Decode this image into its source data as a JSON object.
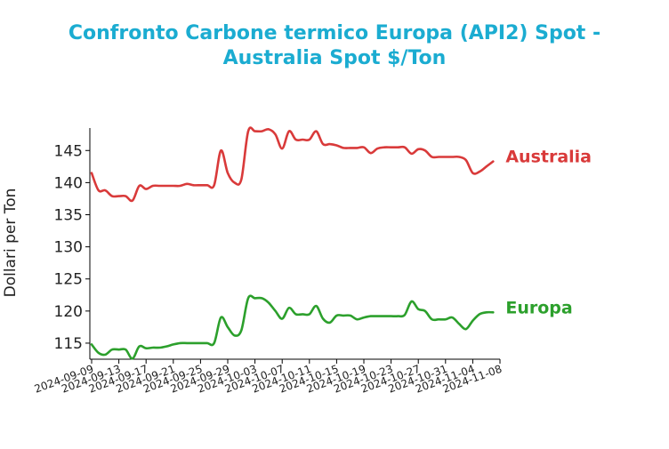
{
  "chart_data": {
    "type": "line",
    "title_line1": "Confronto Carbone termico Europa (API2) Spot -",
    "title_line2": "Australia Spot $/Ton",
    "xlabel": "",
    "ylabel": "Dollari per Ton",
    "ylim": [
      112.5,
      148.5
    ],
    "yticks": [
      115,
      120,
      125,
      130,
      135,
      140,
      145
    ],
    "xlim": [
      "2024-09-09",
      "2024-11-08"
    ],
    "xticks": [
      "2024-09-09",
      "2024-09-13",
      "2024-09-17",
      "2024-09-21",
      "2024-09-25",
      "2024-09-29",
      "2024-10-03",
      "2024-10-07",
      "2024-10-11",
      "2024-10-15",
      "2024-10-19",
      "2024-10-23",
      "2024-10-27",
      "2024-10-31",
      "2024-11-04",
      "2024-11-08"
    ],
    "grid": false,
    "legend": "inline labels at series end",
    "colors": {
      "title": "#1bacd1",
      "Australia": "#d93a3a",
      "Europa": "#2ca02c"
    },
    "series": [
      {
        "name": "Australia",
        "x": [
          "2024-09-09",
          "2024-09-10",
          "2024-09-11",
          "2024-09-12",
          "2024-09-13",
          "2024-09-14",
          "2024-09-15",
          "2024-09-16",
          "2024-09-17",
          "2024-09-18",
          "2024-09-19",
          "2024-09-20",
          "2024-09-21",
          "2024-09-22",
          "2024-09-23",
          "2024-09-24",
          "2024-09-25",
          "2024-09-26",
          "2024-09-27",
          "2024-09-28",
          "2024-09-29",
          "2024-09-30",
          "2024-10-01",
          "2024-10-02",
          "2024-10-03",
          "2024-10-04",
          "2024-10-05",
          "2024-10-06",
          "2024-10-07",
          "2024-10-08",
          "2024-10-09",
          "2024-10-10",
          "2024-10-11",
          "2024-10-12",
          "2024-10-13",
          "2024-10-14",
          "2024-10-15",
          "2024-10-16",
          "2024-10-17",
          "2024-10-18",
          "2024-10-19",
          "2024-10-20",
          "2024-10-21",
          "2024-10-22",
          "2024-10-23",
          "2024-10-24",
          "2024-10-25",
          "2024-10-26",
          "2024-10-27",
          "2024-10-28",
          "2024-10-29",
          "2024-10-30",
          "2024-10-31",
          "2024-11-01",
          "2024-11-02",
          "2024-11-03",
          "2024-11-04",
          "2024-11-05",
          "2024-11-06",
          "2024-11-07"
        ],
        "values": [
          141.5,
          138.8,
          138.8,
          137.9,
          137.9,
          137.9,
          137.2,
          139.5,
          139.0,
          139.5,
          139.5,
          139.5,
          139.5,
          139.5,
          139.8,
          139.6,
          139.6,
          139.6,
          139.6,
          145.0,
          141.5,
          140.0,
          140.5,
          148.0,
          148.0,
          148.0,
          148.3,
          147.5,
          145.3,
          148.0,
          146.7,
          146.7,
          146.7,
          148.0,
          146.0,
          146.0,
          145.8,
          145.4,
          145.4,
          145.4,
          145.5,
          144.6,
          145.3,
          145.5,
          145.5,
          145.5,
          145.5,
          144.5,
          145.2,
          145.0,
          144.0,
          144.0,
          144.0,
          144.0,
          144.0,
          143.5,
          141.5,
          141.7,
          142.5,
          143.3
        ]
      },
      {
        "name": "Europa",
        "x": [
          "2024-09-09",
          "2024-09-10",
          "2024-09-11",
          "2024-09-12",
          "2024-09-13",
          "2024-09-14",
          "2024-09-15",
          "2024-09-16",
          "2024-09-17",
          "2024-09-18",
          "2024-09-19",
          "2024-09-20",
          "2024-09-21",
          "2024-09-22",
          "2024-09-23",
          "2024-09-24",
          "2024-09-25",
          "2024-09-26",
          "2024-09-27",
          "2024-09-28",
          "2024-09-29",
          "2024-09-30",
          "2024-10-01",
          "2024-10-02",
          "2024-10-03",
          "2024-10-04",
          "2024-10-05",
          "2024-10-06",
          "2024-10-07",
          "2024-10-08",
          "2024-10-09",
          "2024-10-10",
          "2024-10-11",
          "2024-10-12",
          "2024-10-13",
          "2024-10-14",
          "2024-10-15",
          "2024-10-16",
          "2024-10-17",
          "2024-10-18",
          "2024-10-19",
          "2024-10-20",
          "2024-10-21",
          "2024-10-22",
          "2024-10-23",
          "2024-10-24",
          "2024-10-25",
          "2024-10-26",
          "2024-10-27",
          "2024-10-28",
          "2024-10-29",
          "2024-10-30",
          "2024-10-31",
          "2024-11-01",
          "2024-11-02",
          "2024-11-03",
          "2024-11-04",
          "2024-11-05",
          "2024-11-06",
          "2024-11-07"
        ],
        "values": [
          114.8,
          113.5,
          113.2,
          114.0,
          114.0,
          114.0,
          112.6,
          114.5,
          114.2,
          114.3,
          114.3,
          114.5,
          114.8,
          115.0,
          115.0,
          115.0,
          115.0,
          115.0,
          115.0,
          119.0,
          117.5,
          116.2,
          117.0,
          122.0,
          122.0,
          122.0,
          121.3,
          120.0,
          118.8,
          120.5,
          119.5,
          119.5,
          119.5,
          120.8,
          118.8,
          118.2,
          119.3,
          119.3,
          119.3,
          118.7,
          119.0,
          119.2,
          119.2,
          119.2,
          119.2,
          119.2,
          119.4,
          121.5,
          120.3,
          120.0,
          118.7,
          118.7,
          118.7,
          119.0,
          118.0,
          117.2,
          118.5,
          119.5,
          119.8,
          119.8
        ]
      }
    ]
  }
}
